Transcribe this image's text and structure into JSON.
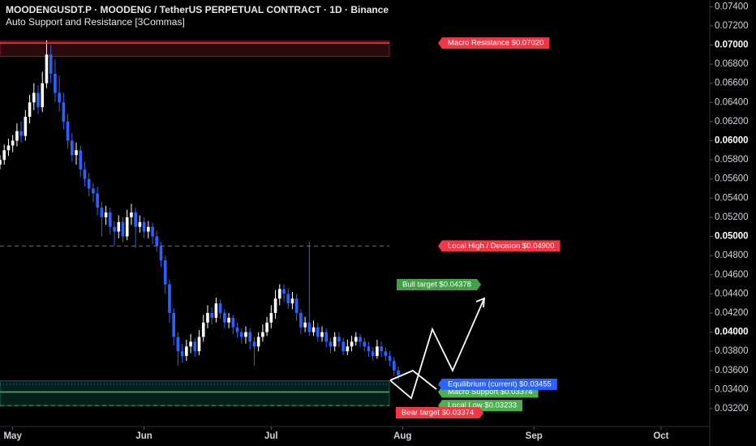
{
  "chart_data": {
    "type": "candlestick",
    "title": "MOODENGUSDT.P · MOODENG / TetherUS PERPETUAL CONTRACT · 1D · Binance",
    "subtitle": "Auto Support and Resistance [3Commas]",
    "up_color": "#ffffff",
    "down_color": "#2962ff",
    "xlim": [
      0,
      167.5
    ],
    "xticks": [
      {
        "value": 3,
        "label": "May"
      },
      {
        "value": 34,
        "label": "Jun"
      },
      {
        "value": 64,
        "label": "Jul"
      },
      {
        "value": 95,
        "label": "Aug"
      },
      {
        "value": 126,
        "label": "Sep"
      },
      {
        "value": 156,
        "label": "Oct"
      }
    ],
    "ylim": [
      0.0281,
      0.0747
    ],
    "yticks": [
      {
        "value": 0.032,
        "label": "0.03200"
      },
      {
        "value": 0.034,
        "label": "0.03400"
      },
      {
        "value": 0.036,
        "label": "0.03600"
      },
      {
        "value": 0.038,
        "label": "0.03800"
      },
      {
        "value": 0.04,
        "label": "0.04000"
      },
      {
        "value": 0.042,
        "label": "0.04200"
      },
      {
        "value": 0.044,
        "label": "0.04400"
      },
      {
        "value": 0.046,
        "label": "0.04600"
      },
      {
        "value": 0.048,
        "label": "0.04800"
      },
      {
        "value": 0.05,
        "label": "0.05000"
      },
      {
        "value": 0.052,
        "label": "0.05200"
      },
      {
        "value": 0.054,
        "label": "0.05400"
      },
      {
        "value": 0.056,
        "label": "0.05600"
      },
      {
        "value": 0.058,
        "label": "0.05800"
      },
      {
        "value": 0.06,
        "label": "0.06000"
      },
      {
        "value": 0.062,
        "label": "0.06200"
      },
      {
        "value": 0.064,
        "label": "0.06400"
      },
      {
        "value": 0.066,
        "label": "0.06600"
      },
      {
        "value": 0.068,
        "label": "0.06800"
      },
      {
        "value": 0.07,
        "label": "0.07000"
      },
      {
        "value": 0.072,
        "label": "0.07200"
      },
      {
        "value": 0.074,
        "label": "0.07400"
      }
    ],
    "open": [
      0.0575,
      0.058,
      0.059,
      0.0595,
      0.06,
      0.061,
      0.0605,
      0.0625,
      0.064,
      0.065,
      0.0635,
      0.066,
      0.069,
      0.067,
      0.065,
      0.064,
      0.062,
      0.06,
      0.0585,
      0.059,
      0.057,
      0.056,
      0.055,
      0.0545,
      0.053,
      0.052,
      0.0525,
      0.051,
      0.0505,
      0.0515,
      0.05,
      0.052,
      0.0525,
      0.051,
      0.0515,
      0.0505,
      0.051,
      0.05,
      0.049,
      0.0475,
      0.045,
      0.042,
      0.0395,
      0.038,
      0.0375,
      0.0385,
      0.039,
      0.038,
      0.0395,
      0.041,
      0.042,
      0.0415,
      0.043,
      0.042,
      0.041,
      0.0415,
      0.0405,
      0.04,
      0.0395,
      0.04,
      0.039,
      0.0385,
      0.0395,
      0.04,
      0.041,
      0.042,
      0.0435,
      0.0445,
      0.044,
      0.043,
      0.0435,
      0.042,
      0.0405,
      0.041,
      0.04,
      0.0405,
      0.0395,
      0.04,
      0.039,
      0.0385,
      0.0395,
      0.039,
      0.038,
      0.0385,
      0.039,
      0.0395,
      0.039,
      0.0385,
      0.038,
      0.0375,
      0.0385,
      0.038,
      0.0375,
      0.037,
      0.036
    ],
    "high": [
      0.0585,
      0.0596,
      0.0602,
      0.0606,
      0.0618,
      0.062,
      0.0632,
      0.0648,
      0.066,
      0.0658,
      0.0672,
      0.0705,
      0.07,
      0.0685,
      0.0668,
      0.065,
      0.0628,
      0.0608,
      0.0598,
      0.0595,
      0.0578,
      0.0566,
      0.0556,
      0.0552,
      0.0536,
      0.0532,
      0.053,
      0.0516,
      0.0522,
      0.052,
      0.0528,
      0.0534,
      0.053,
      0.0522,
      0.052,
      0.0516,
      0.0514,
      0.0506,
      0.0494,
      0.048,
      0.0455,
      0.0425,
      0.04,
      0.0388,
      0.0392,
      0.0398,
      0.0394,
      0.0402,
      0.0418,
      0.0428,
      0.0426,
      0.0436,
      0.0434,
      0.0424,
      0.042,
      0.0418,
      0.041,
      0.0404,
      0.0406,
      0.0404,
      0.0395,
      0.04,
      0.0408,
      0.0416,
      0.0428,
      0.0444,
      0.045,
      0.045,
      0.0446,
      0.0442,
      0.044,
      0.0424,
      0.0416,
      0.0494,
      0.0412,
      0.041,
      0.0406,
      0.0404,
      0.0394,
      0.04,
      0.04,
      0.0394,
      0.0392,
      0.0396,
      0.04,
      0.0398,
      0.0394,
      0.039,
      0.0384,
      0.0392,
      0.039,
      0.0384,
      0.038,
      0.0374,
      0.0364
    ],
    "low": [
      0.057,
      0.0575,
      0.0584,
      0.0588,
      0.0594,
      0.0598,
      0.06,
      0.0618,
      0.0632,
      0.0628,
      0.063,
      0.0655,
      0.066,
      0.064,
      0.063,
      0.0612,
      0.0592,
      0.0578,
      0.0575,
      0.0562,
      0.0552,
      0.0542,
      0.0536,
      0.0522,
      0.05,
      0.0512,
      0.0502,
      0.049,
      0.0498,
      0.0494,
      0.0496,
      0.0512,
      0.0488,
      0.0504,
      0.0498,
      0.0498,
      0.0492,
      0.0484,
      0.0468,
      0.044,
      0.041,
      0.0386,
      0.0365,
      0.0368,
      0.037,
      0.0378,
      0.0374,
      0.0376,
      0.039,
      0.0404,
      0.0408,
      0.041,
      0.0414,
      0.0404,
      0.0404,
      0.0398,
      0.0394,
      0.0388,
      0.0388,
      0.0382,
      0.0365,
      0.038,
      0.039,
      0.0396,
      0.0404,
      0.0414,
      0.0428,
      0.0432,
      0.0424,
      0.0424,
      0.0412,
      0.0398,
      0.04,
      0.0396,
      0.0396,
      0.039,
      0.039,
      0.0384,
      0.0378,
      0.038,
      0.0384,
      0.0376,
      0.0376,
      0.038,
      0.0386,
      0.0384,
      0.038,
      0.0374,
      0.037,
      0.0372,
      0.0374,
      0.037,
      0.0364,
      0.0354,
      0.035
    ],
    "close": [
      0.058,
      0.059,
      0.0595,
      0.06,
      0.061,
      0.0605,
      0.0625,
      0.064,
      0.065,
      0.0635,
      0.066,
      0.069,
      0.067,
      0.065,
      0.064,
      0.062,
      0.06,
      0.0585,
      0.059,
      0.057,
      0.056,
      0.055,
      0.0545,
      0.053,
      0.052,
      0.0525,
      0.051,
      0.0505,
      0.0515,
      0.05,
      0.052,
      0.0525,
      0.051,
      0.0515,
      0.0505,
      0.051,
      0.05,
      0.049,
      0.0475,
      0.045,
      0.042,
      0.0395,
      0.038,
      0.0375,
      0.0385,
      0.039,
      0.038,
      0.0395,
      0.041,
      0.042,
      0.0415,
      0.043,
      0.042,
      0.041,
      0.0415,
      0.0405,
      0.04,
      0.0395,
      0.04,
      0.039,
      0.0385,
      0.0395,
      0.04,
      0.041,
      0.042,
      0.0435,
      0.0445,
      0.044,
      0.043,
      0.0435,
      0.042,
      0.0405,
      0.041,
      0.04,
      0.0405,
      0.0395,
      0.04,
      0.039,
      0.0385,
      0.0395,
      0.039,
      0.038,
      0.0385,
      0.039,
      0.0395,
      0.039,
      0.0385,
      0.038,
      0.0375,
      0.0385,
      0.038,
      0.0375,
      0.037,
      0.036,
      0.0355
    ],
    "zones": [
      {
        "from": 0.0688,
        "to": 0.0704,
        "color": "#f23645"
      },
      {
        "from": 0.03233,
        "to": 0.0349,
        "color": "#22ab94"
      }
    ],
    "levels": [
      {
        "label": "Macro Resistance $0.07020",
        "value": 0.0702,
        "color": "#f23645",
        "style": "solid"
      },
      {
        "label": "Local High / Decision $0.04900",
        "value": 0.049,
        "color": "#f23645",
        "style": "dashed"
      },
      {
        "label": "Macro Support $0.03374",
        "value": 0.03374,
        "color": "#4caf50",
        "style": "solid"
      },
      {
        "label": "Local Low $0.03233",
        "value": 0.03233,
        "color": "#4caf50",
        "style": "dashed"
      },
      {
        "label": "Equilibrium (current) $0.03455",
        "value": 0.03455,
        "color": "#2962ff",
        "style": "dotted"
      }
    ],
    "targets": [
      {
        "label": "Bull target $0.04378",
        "color": "#43a047"
      },
      {
        "label": "Bear target $0.03374",
        "color": "#f23645"
      }
    ]
  }
}
